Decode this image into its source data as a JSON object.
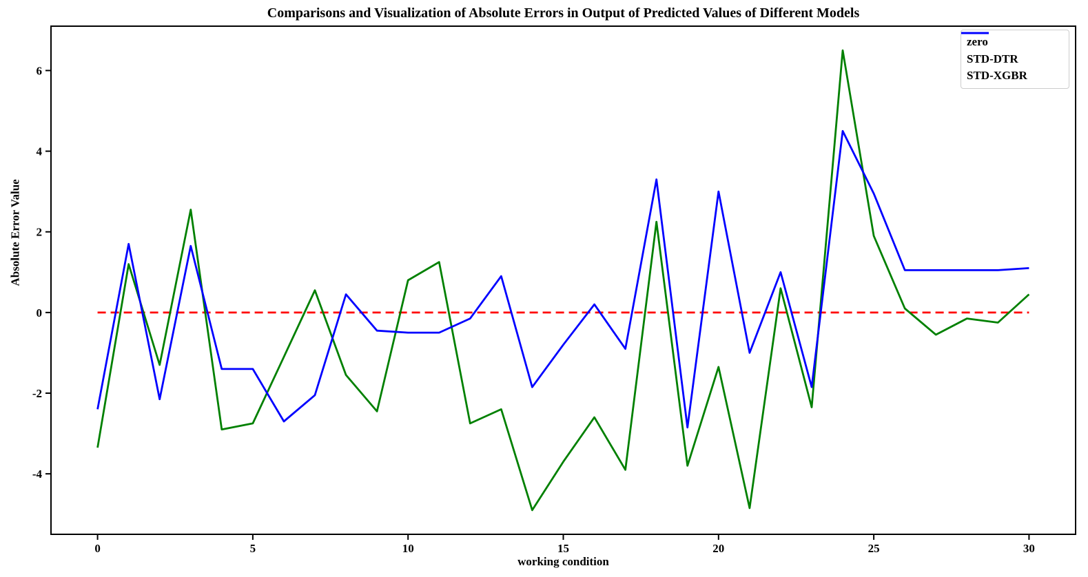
{
  "figure": {
    "title": "Comparisons and Visualization of Absolute Errors in Output of Predicted Values of Different Models"
  },
  "chart_data": {
    "type": "line",
    "title": "Comparisons and Visualization of Absolute Errors in Output of Predicted Values of Different Models",
    "xlabel": "working condition",
    "ylabel": "Absolute Error Value",
    "x": [
      0,
      1,
      2,
      3,
      4,
      5,
      6,
      7,
      8,
      9,
      10,
      11,
      12,
      13,
      14,
      15,
      16,
      17,
      18,
      19,
      20,
      21,
      22,
      23,
      24,
      25,
      26,
      27,
      28,
      29,
      30
    ],
    "series": [
      {
        "name": "zero",
        "color": "#ff0000",
        "style": "dashed",
        "values": [
          0,
          0,
          0,
          0,
          0,
          0,
          0,
          0,
          0,
          0,
          0,
          0,
          0,
          0,
          0,
          0,
          0,
          0,
          0,
          0,
          0,
          0,
          0,
          0,
          0,
          0,
          0,
          0,
          0,
          0,
          0
        ]
      },
      {
        "name": "STD-DTR",
        "color": "#008000",
        "style": "solid",
        "values": [
          -3.35,
          1.2,
          -1.3,
          2.55,
          -2.9,
          -2.75,
          -1.1,
          0.55,
          -1.55,
          -2.45,
          0.8,
          1.25,
          -2.75,
          -2.4,
          -4.9,
          -3.7,
          -2.6,
          -3.9,
          2.25,
          -3.8,
          -1.35,
          -4.85,
          0.6,
          -2.35,
          6.5,
          1.9,
          0.1,
          -0.55,
          -0.15,
          -0.25,
          0.45
        ]
      },
      {
        "name": "STD-XGBR",
        "color": "#0000ff",
        "style": "solid",
        "values": [
          -2.4,
          1.7,
          -2.15,
          1.65,
          -1.4,
          -1.4,
          -2.7,
          -2.05,
          0.45,
          -0.45,
          -0.5,
          -0.5,
          -0.15,
          0.9,
          -1.85,
          -0.8,
          0.2,
          -0.9,
          3.3,
          -2.85,
          3.0,
          -1.0,
          1.0,
          -1.85,
          4.5,
          2.95,
          1.05,
          1.05,
          1.05,
          1.05,
          1.1
        ]
      }
    ],
    "xlim": [
      -1.5,
      31.5
    ],
    "ylim": [
      -5.5,
      7.1
    ],
    "xticks": [
      0,
      5,
      10,
      15,
      20,
      25,
      30
    ],
    "yticks": [
      -4,
      -2,
      0,
      2,
      4,
      6
    ],
    "grid": false,
    "legend_position": "upper right",
    "legend": [
      "zero",
      "STD-DTR",
      "STD-XGBR"
    ]
  }
}
